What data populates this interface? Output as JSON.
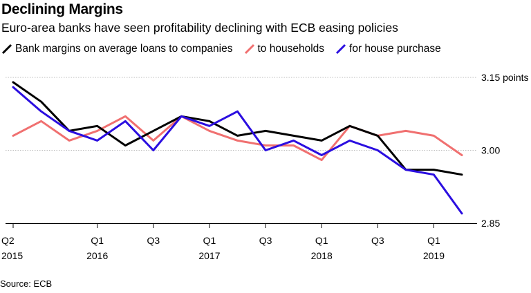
{
  "chart_data": {
    "type": "line",
    "title": "Declining Margins",
    "subtitle": "Euro-area banks have seen profitability declining with ECB easing policies",
    "source": "Source: ECB",
    "x": [
      "2015-Q2",
      "2015-Q3",
      "2015-Q4",
      "2016-Q1",
      "2016-Q2",
      "2016-Q3",
      "2016-Q4",
      "2017-Q1",
      "2017-Q2",
      "2017-Q3",
      "2017-Q4",
      "2018-Q1",
      "2018-Q2",
      "2018-Q3",
      "2018-Q4",
      "2019-Q1",
      "2019-Q2"
    ],
    "x_tick_labels": [
      {
        "index": 0,
        "line1": "Q2",
        "line2": "2015"
      },
      {
        "index": 3,
        "line1": "Q1",
        "line2": "2016"
      },
      {
        "index": 5,
        "line1": "Q3",
        "line2": ""
      },
      {
        "index": 7,
        "line1": "Q1",
        "line2": "2017"
      },
      {
        "index": 9,
        "line1": "Q3",
        "line2": ""
      },
      {
        "index": 11,
        "line1": "Q1",
        "line2": "2018"
      },
      {
        "index": 13,
        "line1": "Q3",
        "line2": ""
      },
      {
        "index": 15,
        "line1": "Q1",
        "line2": "2019"
      }
    ],
    "x_ticks": [
      0,
      3,
      5,
      7,
      9,
      11,
      13,
      15
    ],
    "ylim": [
      2.85,
      3.15
    ],
    "y_ticks": [
      {
        "value": 3.15,
        "label": "3.15 points"
      },
      {
        "value": 3.0,
        "label": "3.00"
      },
      {
        "value": 2.85,
        "label": "2.85"
      }
    ],
    "series": [
      {
        "name": "Bank margins on average loans to companies",
        "color": "#000000",
        "values": [
          3.14,
          3.1,
          3.04,
          3.05,
          3.01,
          3.04,
          3.07,
          3.06,
          3.03,
          3.04,
          3.03,
          3.02,
          3.05,
          3.03,
          2.96,
          2.96,
          2.95
        ]
      },
      {
        "name": "to households",
        "color": "#f07070",
        "values": [
          3.03,
          3.06,
          3.02,
          3.04,
          3.07,
          3.02,
          3.07,
          3.04,
          3.02,
          3.01,
          3.01,
          2.98,
          3.05,
          3.03,
          3.04,
          3.03,
          2.99
        ]
      },
      {
        "name": "for house purchase",
        "color": "#2b0ee0",
        "values": [
          3.13,
          3.08,
          3.04,
          3.02,
          3.06,
          3.0,
          3.07,
          3.05,
          3.08,
          3.0,
          3.02,
          2.99,
          3.02,
          3.0,
          2.96,
          2.95,
          2.87
        ]
      }
    ],
    "legend": [
      {
        "label": "Bank margins on average loans to companies",
        "color": "#000000"
      },
      {
        "label": "to households",
        "color": "#f07070"
      },
      {
        "label": "for house purchase",
        "color": "#2b0ee0"
      }
    ]
  }
}
